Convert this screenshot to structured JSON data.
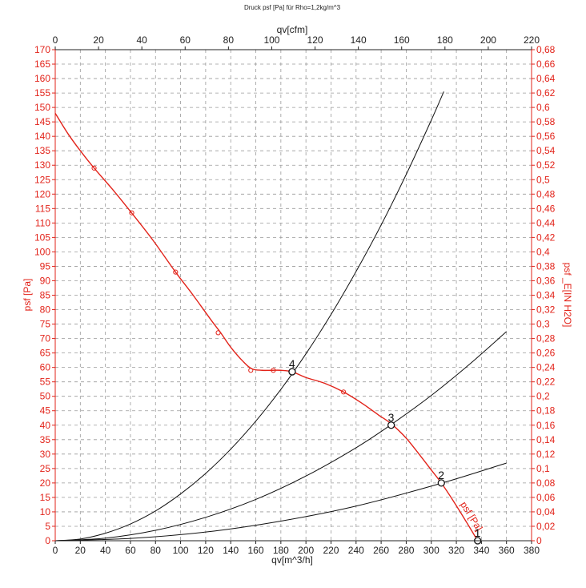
{
  "title": "Druck psf [Pa] für Rho=1,2kg/m^3",
  "colors": {
    "fan_curve": "#e2231a",
    "system_curves": "#111111",
    "grid": "#9a9a9a",
    "left_axis": "#e2231a",
    "right_axis": "#e2231a",
    "bottom_axis": "#222222",
    "top_axis": "#222222"
  },
  "chart_data": {
    "type": "line",
    "title": "Druck psf [Pa] für Rho=1,2kg/m^3",
    "xlabel": "qv[m^3/h]",
    "x2label": "qv[cfm]",
    "ylabel": "psf [Pa]",
    "y2label": "psf _E[IN H2O]",
    "xlim": [
      0,
      380
    ],
    "x2lim": [
      0,
      220
    ],
    "ylim": [
      0,
      170
    ],
    "y2lim": [
      0,
      0.68
    ],
    "grid": true,
    "x_ticks": [
      "0",
      "20",
      "40",
      "60",
      "80",
      "100",
      "120",
      "140",
      "160",
      "180",
      "200",
      "220",
      "240",
      "260",
      "280",
      "300",
      "320",
      "340",
      "360",
      "380"
    ],
    "x2_ticks": [
      "0",
      "20",
      "40",
      "60",
      "80",
      "100",
      "120",
      "140",
      "160",
      "180",
      "200",
      "220"
    ],
    "y_ticks": [
      "0",
      "5",
      "10",
      "15",
      "20",
      "25",
      "30",
      "35",
      "40",
      "45",
      "50",
      "55",
      "60",
      "65",
      "70",
      "75",
      "80",
      "85",
      "90",
      "95",
      "100",
      "105",
      "110",
      "115",
      "120",
      "125",
      "130",
      "135",
      "140",
      "145",
      "150",
      "155",
      "160",
      "165",
      "170"
    ],
    "y2_ticks": [
      "0",
      "0,02",
      "0,04",
      "0,06",
      "0,08",
      "0,1",
      "0,12",
      "0,14",
      "0,16",
      "0,18",
      "0,2",
      "0,22",
      "0,24",
      "0,26",
      "0,28",
      "0,3",
      "0,32",
      "0,34",
      "0,36",
      "0,38",
      "0,4",
      "0,42",
      "0,44",
      "0,46",
      "0,48",
      "0,5",
      "0,52",
      "0,54",
      "0,56",
      "0,58",
      "0,6",
      "0,62",
      "0,64",
      "0,66",
      "0,68"
    ],
    "fan_curve": {
      "label": "psf [Pa]",
      "x": [
        0,
        10,
        20,
        31,
        45,
        60,
        78,
        96,
        110,
        125,
        132,
        140,
        150,
        157,
        165,
        173,
        180,
        189,
        200,
        215,
        230,
        245,
        258,
        268,
        280,
        292,
        300,
        308,
        318,
        328,
        337
      ],
      "y": [
        148,
        141,
        135,
        129,
        122,
        114,
        104,
        93,
        85,
        76,
        72,
        67,
        62,
        59.5,
        59,
        59,
        59,
        58.5,
        56.5,
        54.5,
        51.5,
        47.5,
        43.5,
        40.5,
        35.5,
        29,
        24.5,
        20,
        13.5,
        6.5,
        0
      ],
      "markers_x": [
        31,
        61,
        96,
        130,
        156,
        174,
        230
      ],
      "markers_y": [
        129,
        113.5,
        93,
        72,
        59,
        59,
        51.5
      ]
    },
    "system_curves": [
      {
        "x": [
          0,
          20,
          40,
          60,
          80,
          100,
          120,
          140,
          160,
          180,
          200,
          220,
          240,
          260,
          280,
          300,
          310
        ],
        "y": [
          0,
          0.6,
          2.6,
          5.8,
          10.3,
          16.2,
          23.3,
          31.7,
          41.4,
          52.4,
          64.7,
          78.3,
          93.2,
          109.3,
          126.8,
          145.6,
          155.5
        ]
      },
      {
        "x": [
          0,
          40,
          80,
          120,
          160,
          200,
          240,
          268,
          300,
          330,
          360
        ],
        "y": [
          0,
          0.9,
          3.6,
          8.1,
          14.3,
          22.4,
          32.2,
          40.2,
          50.3,
          60.9,
          72.4
        ]
      },
      {
        "x": [
          0,
          60,
          120,
          180,
          240,
          308,
          360
        ],
        "y": [
          0,
          0.8,
          3.0,
          6.8,
          12.0,
          19.9,
          26.9
        ]
      }
    ],
    "operating_points": [
      {
        "label": "1",
        "x": 337,
        "y": 0
      },
      {
        "label": "2",
        "x": 308,
        "y": 20
      },
      {
        "label": "3",
        "x": 268,
        "y": 40
      },
      {
        "label": "4",
        "x": 189,
        "y": 58.5
      }
    ]
  }
}
